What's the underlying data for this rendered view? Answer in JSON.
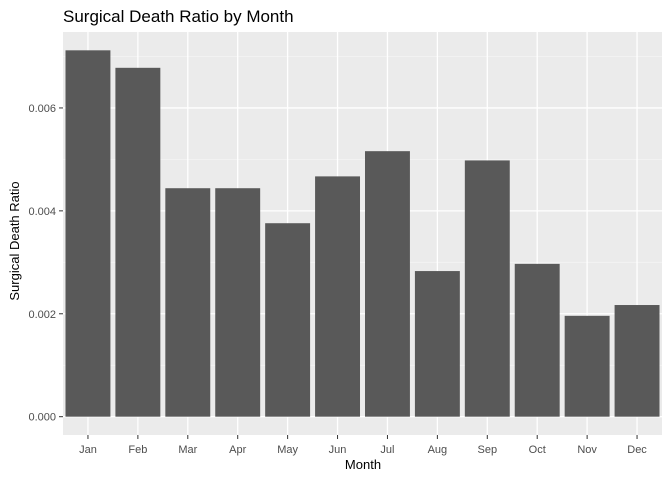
{
  "chart_data": {
    "type": "bar",
    "title": "Surgical Death Ratio by Month",
    "xlabel": "Month",
    "ylabel": "Surgical Death Ratio",
    "categories": [
      "Jan",
      "Feb",
      "Mar",
      "Apr",
      "May",
      "Jun",
      "Jul",
      "Aug",
      "Sep",
      "Oct",
      "Nov",
      "Dec"
    ],
    "values": [
      0.00712,
      0.00678,
      0.00444,
      0.00444,
      0.00376,
      0.00467,
      0.00516,
      0.00283,
      0.00498,
      0.00297,
      0.00196,
      0.00217
    ],
    "ylim": [
      -0.000356,
      0.007476
    ],
    "yticks": [
      0,
      0.002,
      0.004,
      0.006
    ],
    "ytick_labels": [
      "0.000",
      "0.002",
      "0.004",
      "0.006"
    ],
    "grid": true,
    "legend": "none",
    "colors": {
      "bar": "#595959",
      "panel": "#ebebeb",
      "grid_major": "#ffffff",
      "grid_minor": "#f5f5f5"
    }
  }
}
